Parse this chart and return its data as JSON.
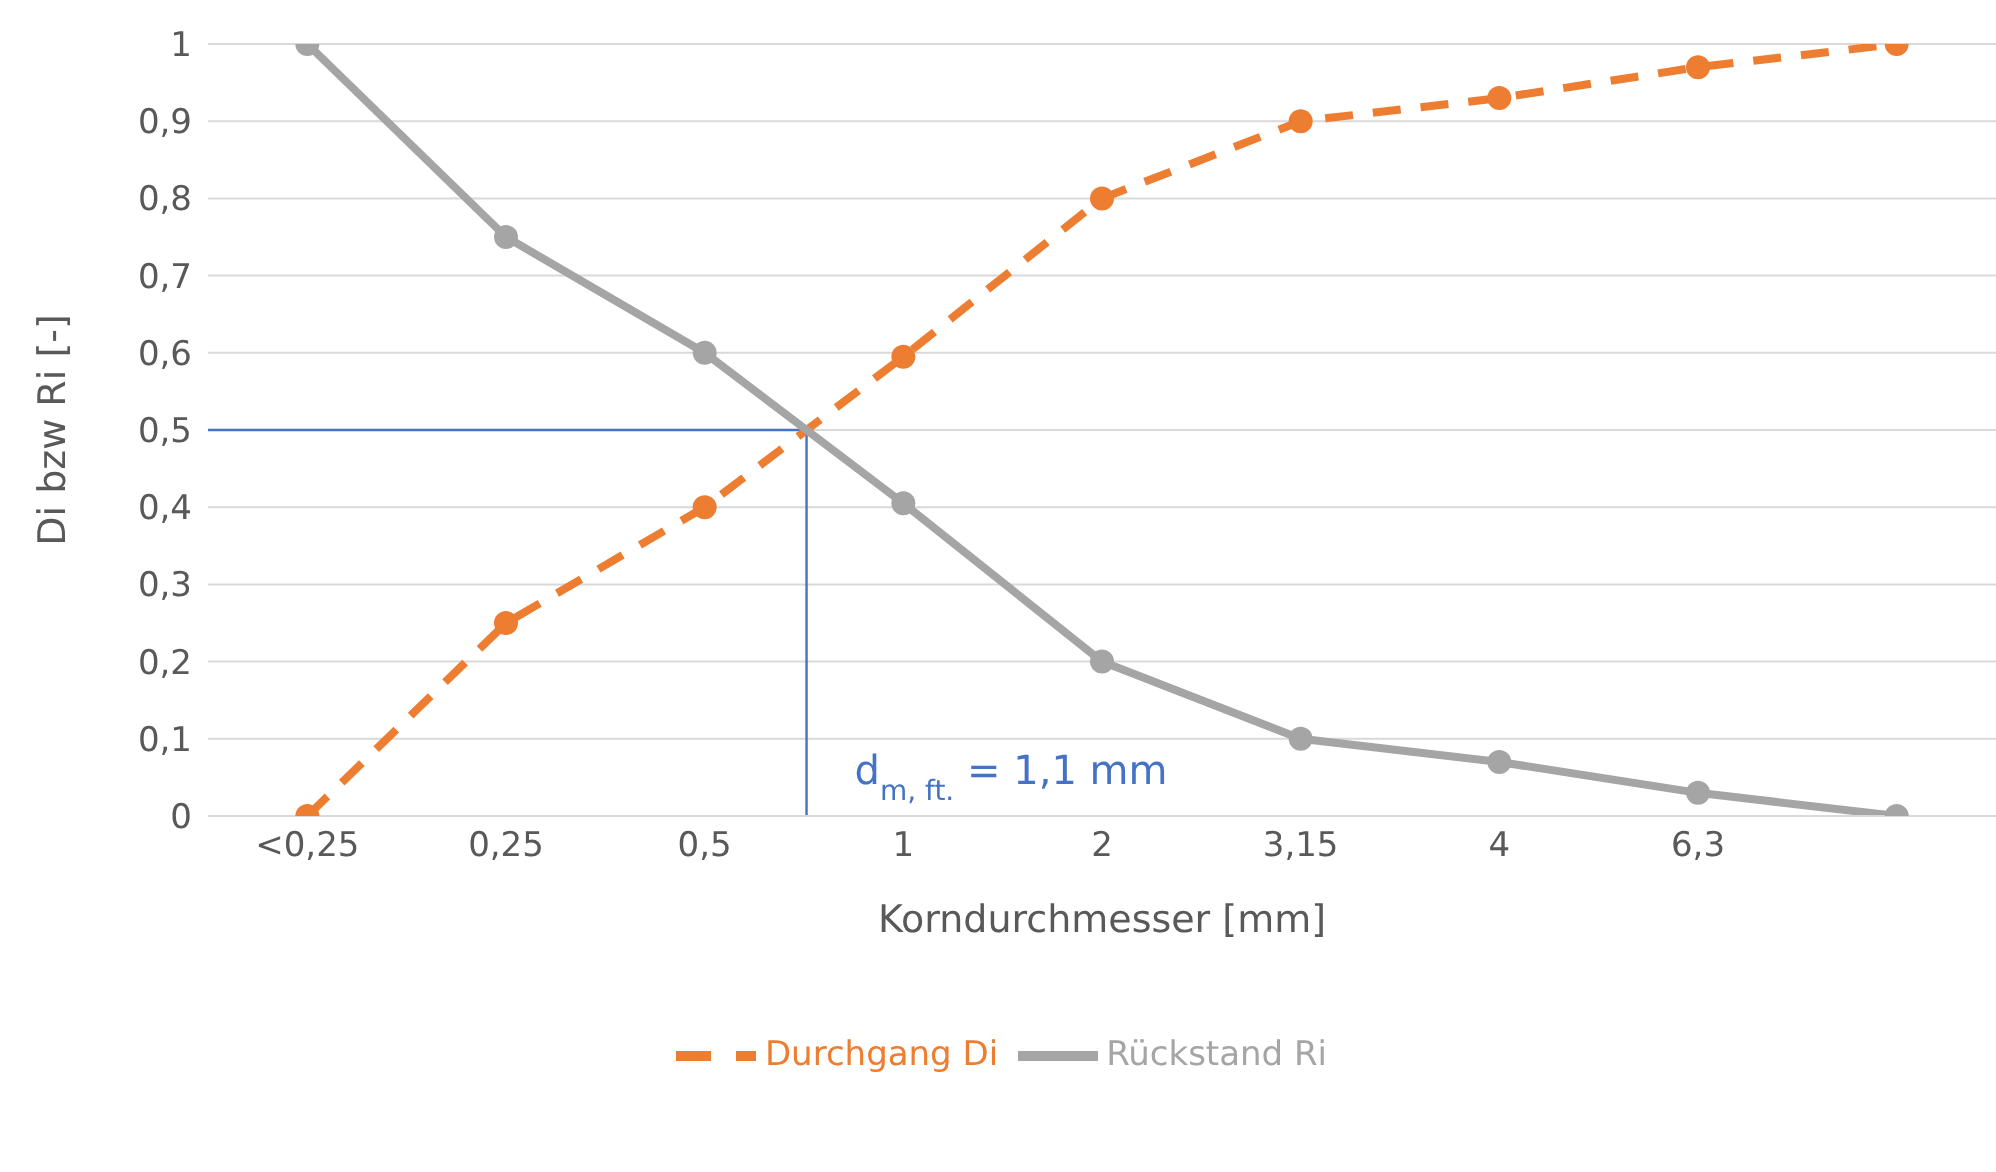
{
  "chart_data": {
    "type": "line",
    "xlabel": "Korndurchmesser [mm]",
    "ylabel": "Di bzw Ri [-]",
    "categories": [
      "<0,25",
      "0,25",
      "0,5",
      "1",
      "2",
      "3,15",
      "4",
      "6,3",
      null
    ],
    "series": [
      {
        "name": "Durchgang Di",
        "color": "#ed7d31",
        "line_style": "dashed",
        "values": [
          0,
          0.25,
          0.4,
          0.595,
          0.8,
          0.9,
          0.93,
          0.97,
          1
        ]
      },
      {
        "name": "Rückstand Ri",
        "color": "#a5a5a5",
        "line_style": "solid",
        "values": [
          1,
          0.75,
          0.6,
          0.405,
          0.2,
          0.1,
          0.07,
          0.03,
          0
        ]
      }
    ],
    "ylim": [
      0,
      1
    ],
    "yticks": [
      0,
      {
        "value": 0.1,
        "label": "0,1"
      },
      {
        "value": 0.2,
        "label": "0,2"
      },
      {
        "value": 0.3,
        "label": "0,3"
      },
      {
        "value": 0.4,
        "label": "0,4"
      },
      {
        "value": 0.5,
        "label": "0,5"
      },
      {
        "value": 0.6,
        "label": "0,6"
      },
      {
        "value": 0.7,
        "label": "0,7"
      },
      {
        "value": 0.8,
        "label": "0,8"
      },
      {
        "value": 0.9,
        "label": "0,9"
      },
      1
    ],
    "ref_lines": [
      {
        "axis": "y",
        "value": 0.5,
        "color": "#4472c4"
      }
    ],
    "annotations": [
      "d$_{m, ft.}$ = 1,1 mm"
    ],
    "grid": "y",
    "legend": "bottom",
    "marker": "circle"
  }
}
